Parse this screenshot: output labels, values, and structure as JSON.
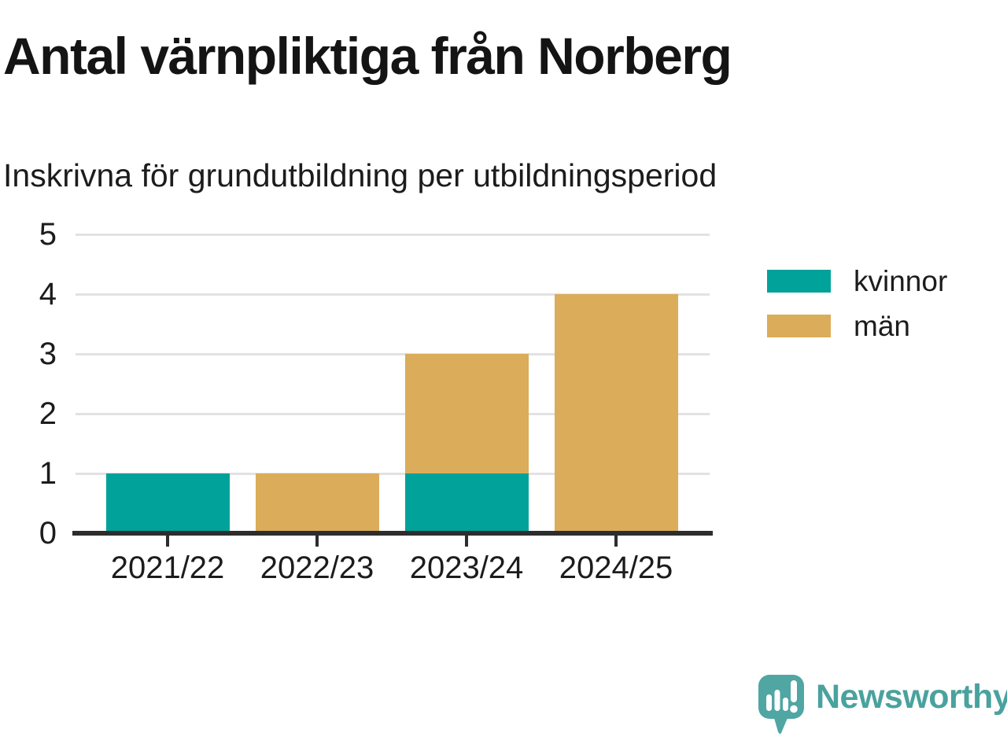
{
  "title": "Antal värnpliktiga från Norberg",
  "subtitle": "Inskrivna för grundutbildning per utbildningsperiod",
  "chart_data": {
    "type": "bar",
    "stacked": true,
    "title": "Antal värnpliktiga från Norberg",
    "subtitle": "Inskrivna för grundutbildning per utbildningsperiod",
    "categories": [
      "2021/22",
      "2022/23",
      "2023/24",
      "2024/25"
    ],
    "series": [
      {
        "name": "kvinnor",
        "color": "#00A29A",
        "values": [
          1,
          0,
          1,
          0
        ]
      },
      {
        "name": "män",
        "color": "#DBAC59",
        "values": [
          0,
          1,
          2,
          4
        ]
      }
    ],
    "stacked_totals": [
      1,
      1,
      3,
      4
    ],
    "xlabel": "",
    "ylabel": "",
    "ylim": [
      0,
      5
    ],
    "yticks": [
      0,
      1,
      2,
      3,
      4,
      5
    ],
    "grid": true,
    "legend_position": "right-top"
  },
  "legend": {
    "items": [
      {
        "label": "kvinnor",
        "color": "#00A29A"
      },
      {
        "label": "män",
        "color": "#DBAC59"
      }
    ]
  },
  "branding": {
    "wordmark": "Newsworthy",
    "logo_icon": "speech-bubble-bar-chart-icon",
    "color": "#4AA29E",
    "icon_color": "#4FA6A2"
  },
  "colors": {
    "grid": "#E2E2E2",
    "axis": "#2D2D2D",
    "text": "#1c1c1c"
  }
}
